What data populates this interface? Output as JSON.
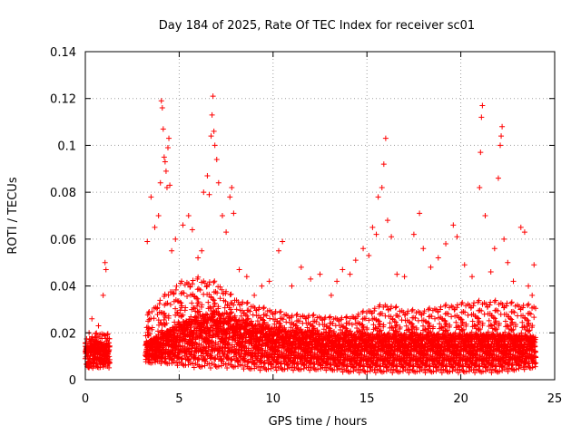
{
  "chart_data": {
    "type": "scatter",
    "title": "Day 184 of 2025, Rate Of TEC Index for receiver sc01",
    "xlabel": "GPS time / hours",
    "ylabel": "ROTI / TECUs",
    "xlim": [
      0,
      25
    ],
    "ylim": [
      0,
      0.14
    ],
    "x_ticks": [
      "0",
      "5",
      "10",
      "15",
      "20",
      "25"
    ],
    "y_ticks": [
      "0",
      "0.02",
      "0.04",
      "0.06",
      "0.08",
      "0.1",
      "0.12",
      "0.14"
    ],
    "grid": true,
    "marker": "+",
    "color": "#ff0000",
    "data_gap_hours": [
      1.3,
      3.2
    ],
    "points": [
      [
        0.05,
        0.012
      ],
      [
        0.2,
        0.02
      ],
      [
        0.35,
        0.026
      ],
      [
        0.5,
        0.018
      ],
      [
        0.7,
        0.023
      ],
      [
        0.95,
        0.036
      ],
      [
        1.05,
        0.05
      ],
      [
        1.1,
        0.047
      ],
      [
        3.3,
        0.059
      ],
      [
        3.4,
        0.029
      ],
      [
        3.5,
        0.078
      ],
      [
        3.7,
        0.065
      ],
      [
        3.9,
        0.07
      ],
      [
        4.0,
        0.084
      ],
      [
        4.05,
        0.119
      ],
      [
        4.1,
        0.116
      ],
      [
        4.15,
        0.107
      ],
      [
        4.2,
        0.095
      ],
      [
        4.25,
        0.093
      ],
      [
        4.3,
        0.089
      ],
      [
        4.35,
        0.082
      ],
      [
        4.4,
        0.099
      ],
      [
        4.45,
        0.103
      ],
      [
        4.5,
        0.083
      ],
      [
        4.6,
        0.055
      ],
      [
        4.8,
        0.06
      ],
      [
        5.2,
        0.066
      ],
      [
        5.5,
        0.07
      ],
      [
        5.7,
        0.064
      ],
      [
        6.0,
        0.052
      ],
      [
        6.2,
        0.055
      ],
      [
        6.3,
        0.08
      ],
      [
        6.5,
        0.087
      ],
      [
        6.6,
        0.079
      ],
      [
        6.7,
        0.104
      ],
      [
        6.75,
        0.113
      ],
      [
        6.8,
        0.121
      ],
      [
        6.85,
        0.106
      ],
      [
        6.9,
        0.1
      ],
      [
        7.0,
        0.094
      ],
      [
        7.1,
        0.084
      ],
      [
        7.3,
        0.07
      ],
      [
        7.5,
        0.063
      ],
      [
        7.7,
        0.078
      ],
      [
        7.8,
        0.082
      ],
      [
        7.9,
        0.071
      ],
      [
        8.2,
        0.047
      ],
      [
        8.6,
        0.044
      ],
      [
        9.0,
        0.036
      ],
      [
        9.4,
        0.04
      ],
      [
        9.8,
        0.042
      ],
      [
        10.3,
        0.055
      ],
      [
        10.5,
        0.059
      ],
      [
        11.0,
        0.04
      ],
      [
        11.5,
        0.048
      ],
      [
        12.0,
        0.043
      ],
      [
        12.5,
        0.045
      ],
      [
        13.1,
        0.036
      ],
      [
        13.4,
        0.042
      ],
      [
        13.7,
        0.047
      ],
      [
        14.1,
        0.045
      ],
      [
        14.4,
        0.051
      ],
      [
        14.8,
        0.056
      ],
      [
        15.1,
        0.053
      ],
      [
        15.3,
        0.065
      ],
      [
        15.5,
        0.062
      ],
      [
        15.6,
        0.078
      ],
      [
        15.8,
        0.082
      ],
      [
        15.9,
        0.092
      ],
      [
        16.0,
        0.103
      ],
      [
        16.1,
        0.068
      ],
      [
        16.3,
        0.061
      ],
      [
        16.6,
        0.045
      ],
      [
        17.0,
        0.044
      ],
      [
        17.5,
        0.062
      ],
      [
        17.8,
        0.071
      ],
      [
        18.0,
        0.056
      ],
      [
        18.4,
        0.048
      ],
      [
        18.8,
        0.052
      ],
      [
        19.2,
        0.058
      ],
      [
        19.6,
        0.066
      ],
      [
        19.8,
        0.061
      ],
      [
        20.2,
        0.049
      ],
      [
        20.6,
        0.044
      ],
      [
        21.0,
        0.082
      ],
      [
        21.05,
        0.097
      ],
      [
        21.1,
        0.112
      ],
      [
        21.15,
        0.117
      ],
      [
        21.3,
        0.07
      ],
      [
        21.6,
        0.046
      ],
      [
        21.8,
        0.056
      ],
      [
        22.0,
        0.086
      ],
      [
        22.1,
        0.1
      ],
      [
        22.15,
        0.104
      ],
      [
        22.2,
        0.108
      ],
      [
        22.3,
        0.06
      ],
      [
        22.5,
        0.05
      ],
      [
        22.8,
        0.042
      ],
      [
        23.2,
        0.065
      ],
      [
        23.4,
        0.063
      ],
      [
        23.6,
        0.04
      ],
      [
        23.8,
        0.036
      ],
      [
        23.9,
        0.049
      ]
    ],
    "envelope_hours": [
      0,
      0.5,
      1,
      1.2,
      3.3,
      4,
      5,
      6,
      7,
      8,
      9,
      10,
      11,
      12,
      13,
      14,
      15,
      16,
      17,
      18,
      19,
      20,
      21,
      22,
      23,
      24
    ],
    "envelope_floor": [
      0.005,
      0.005,
      0.005,
      0.005,
      0.007,
      0.007,
      0.006,
      0.005,
      0.005,
      0.005,
      0.004,
      0.004,
      0.004,
      0.004,
      0.004,
      0.003,
      0.003,
      0.003,
      0.003,
      0.003,
      0.003,
      0.003,
      0.003,
      0.003,
      0.004,
      0.005
    ],
    "envelope_typical": [
      0.011,
      0.012,
      0.012,
      0.012,
      0.013,
      0.015,
      0.018,
      0.02,
      0.021,
      0.019,
      0.017,
      0.016,
      0.015,
      0.015,
      0.014,
      0.014,
      0.014,
      0.014,
      0.014,
      0.014,
      0.014,
      0.014,
      0.014,
      0.014,
      0.014,
      0.014
    ],
    "envelope_high": [
      0.018,
      0.02,
      0.02,
      0.02,
      0.028,
      0.035,
      0.042,
      0.044,
      0.042,
      0.035,
      0.032,
      0.03,
      0.028,
      0.028,
      0.027,
      0.027,
      0.03,
      0.033,
      0.03,
      0.03,
      0.032,
      0.033,
      0.034,
      0.034,
      0.033,
      0.032
    ]
  }
}
